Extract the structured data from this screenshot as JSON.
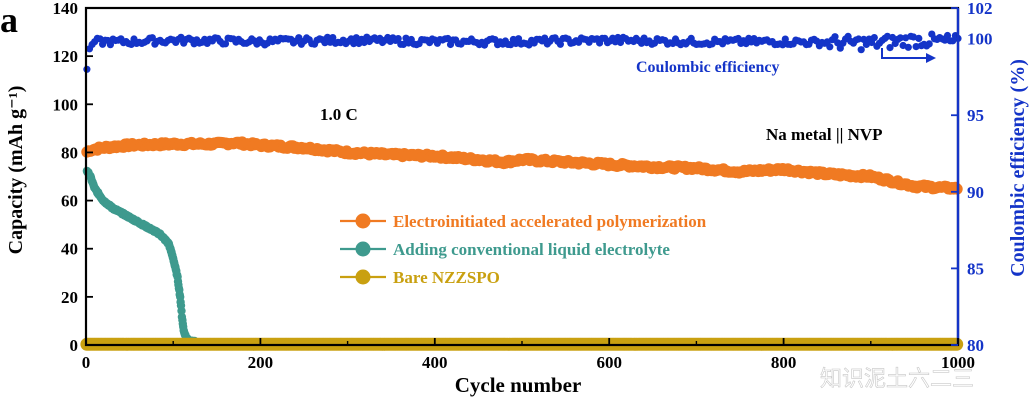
{
  "panel_label": "a",
  "watermark": "知识泥土六二三",
  "colors": {
    "capacity_polymer": "#F07A22",
    "capacity_liquid": "#3E9A8E",
    "capacity_bare": "#C9A010",
    "coulombic": "#1434C8",
    "right_axis": "#1434C8",
    "left_axis": "#000000"
  },
  "chart_data": {
    "type": "scatter",
    "xlabel": "Cycle number",
    "ylabel_left": "Capacity (mAh g⁻¹)",
    "ylabel_right": "Coulombic efficiency (%)",
    "xlim": [
      0,
      1000
    ],
    "ylim_left": [
      0,
      140
    ],
    "ylim_right": [
      80,
      102
    ],
    "x_ticks": [
      0,
      200,
      400,
      600,
      800,
      1000
    ],
    "y_left_ticks": [
      0,
      20,
      40,
      60,
      80,
      100,
      120,
      140
    ],
    "y_right_ticks": [
      80,
      85,
      90,
      95,
      100,
      102
    ],
    "annotations": {
      "rate": "1.0 C",
      "cell": "Na metal || NVP",
      "ce_label": "Coulombic efficiency"
    },
    "legend": {
      "placement": "center",
      "entries": [
        "Electroinitiated accelerated polymerization",
        "Adding conventional liquid electrolyte",
        "Bare NZZSPO"
      ]
    },
    "series": [
      {
        "name": "Electroinitiated accelerated polymerization",
        "axis": "left",
        "color_key": "capacity_polymer",
        "x": [
          0,
          5,
          20,
          50,
          100,
          150,
          170,
          200,
          250,
          300,
          350,
          400,
          450,
          480,
          500,
          550,
          600,
          650,
          700,
          750,
          800,
          850,
          900,
          950,
          1000
        ],
        "y": [
          80,
          81,
          82,
          83,
          83.5,
          83.5,
          84,
          83,
          82,
          80,
          79,
          78.5,
          77,
          76,
          77,
          76,
          75,
          74,
          73.5,
          72,
          73,
          71,
          70,
          66,
          65
        ]
      },
      {
        "name": "Adding conventional liquid electrolyte",
        "axis": "left",
        "color_key": "capacity_liquid",
        "x": [
          0,
          5,
          10,
          20,
          30,
          50,
          70,
          85,
          95,
          100,
          105,
          108,
          110,
          112,
          115,
          120,
          130,
          150,
          200,
          300,
          500
        ],
        "y": [
          73,
          70,
          65,
          60,
          57,
          53,
          49,
          46,
          42,
          36,
          28,
          20,
          12,
          6,
          3,
          1.5,
          1,
          0.8,
          0.6,
          0.5,
          0.4
        ]
      },
      {
        "name": "Bare NZZSPO",
        "axis": "left",
        "color_key": "capacity_bare",
        "x": [
          0,
          1000
        ],
        "y": [
          0.3,
          0.3
        ]
      },
      {
        "name": "Coulombic efficiency",
        "axis": "right",
        "color_key": "coulombic",
        "x": [
          0,
          2,
          5,
          10,
          20,
          50,
          100,
          200,
          300,
          400,
          500,
          600,
          700,
          800,
          900,
          950,
          1000
        ],
        "y": [
          97,
          99,
          99.5,
          99.8,
          99.8,
          99.8,
          99.9,
          99.8,
          99.9,
          99.8,
          99.8,
          99.9,
          99.8,
          99.8,
          99.7,
          99.9,
          99.8
        ]
      }
    ]
  }
}
